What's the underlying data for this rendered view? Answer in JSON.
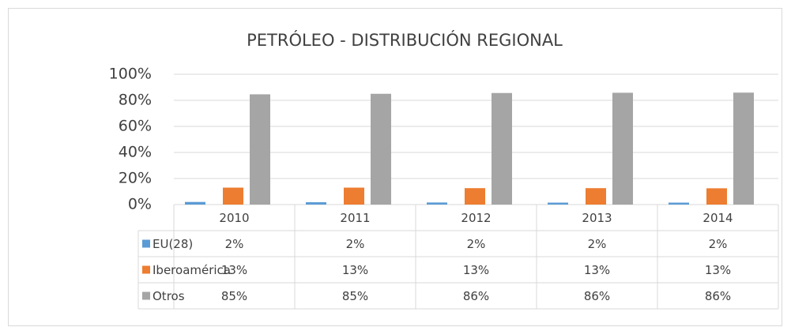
{
  "chart_data": {
    "type": "bar",
    "title": "PETRÓLEO - DISTRIBUCIÓN REGIONAL",
    "categories": [
      "2010",
      "2011",
      "2012",
      "2013",
      "2014"
    ],
    "series": [
      {
        "name": "EU(28)",
        "color": "#5b9bd5",
        "values": [
          2,
          1.8,
          1.6,
          1.5,
          1.5
        ],
        "value_labels": [
          "2%",
          "2%",
          "2%",
          "2%",
          "2%"
        ]
      },
      {
        "name": "Iberoamérica",
        "color": "#ed7d31",
        "values": [
          13,
          13,
          12.6,
          12.6,
          12.5
        ],
        "value_labels": [
          "13%",
          "13%",
          "13%",
          "13%",
          "13%"
        ]
      },
      {
        "name": "Otros",
        "color": "#a5a5a5",
        "values": [
          84.6,
          85,
          85.6,
          85.8,
          85.9
        ],
        "value_labels": [
          "85%",
          "85%",
          "86%",
          "86%",
          "86%"
        ]
      }
    ],
    "ylim": [
      0,
      100
    ],
    "yticks": [
      {
        "value": 0,
        "label": "0%"
      },
      {
        "value": 20,
        "label": "20%"
      },
      {
        "value": 40,
        "label": "40%"
      },
      {
        "value": 60,
        "label": "60%"
      },
      {
        "value": 80,
        "label": "80%"
      },
      {
        "value": 100,
        "label": "100%"
      }
    ],
    "grid": true
  }
}
